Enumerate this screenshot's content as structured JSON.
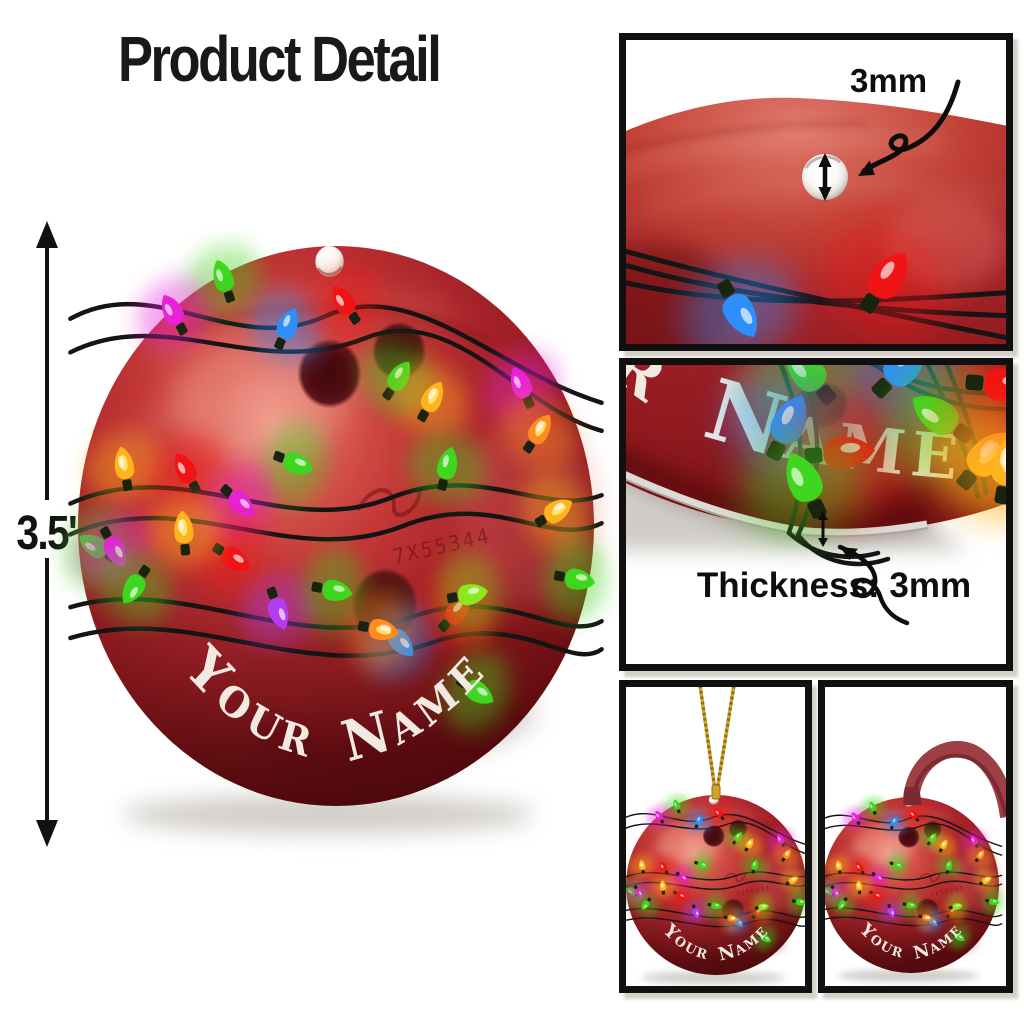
{
  "header": {
    "title": "Product Detail"
  },
  "measurement": {
    "label": "3.5'"
  },
  "ornament": {
    "name_text": "Your Name",
    "engraving": "7X55344",
    "ball_color": "#b32a2b",
    "wire_color": "#141414",
    "bulb_palette": {
      "green": "#3fd61f",
      "blue": "#2f8ffa",
      "red": "#f01414",
      "amber": "#ffb41e",
      "orange": "#ff8c1e",
      "magenta": "#e822d8",
      "purple": "#b43cf0",
      "lime": "#8ce81e"
    },
    "bulbs": [
      [
        -87,
        -176,
        -20,
        "green"
      ],
      [
        -38,
        -142,
        25,
        "blue"
      ],
      [
        7,
        -159,
        -35,
        "red"
      ],
      [
        48,
        -105,
        35,
        "green"
      ],
      [
        74,
        -90,
        30,
        "amber"
      ],
      [
        86,
        -42,
        15,
        "green"
      ],
      [
        144,
        -100,
        -25,
        "magenta"
      ],
      [
        157,
        -67,
        35,
        "orange"
      ],
      [
        -126,
        -152,
        -30,
        "magenta"
      ],
      [
        -164,
        -42,
        -10,
        "amber"
      ],
      [
        -116,
        -39,
        -30,
        "red"
      ],
      [
        -32,
        -45,
        110,
        "green"
      ],
      [
        -75,
        -17,
        130,
        "magenta"
      ],
      [
        -80,
        23,
        120,
        "red"
      ],
      [
        -118,
        4,
        -5,
        "amber"
      ],
      [
        -186,
        15,
        -60,
        "green"
      ],
      [
        -172,
        16,
        150,
        "magenta"
      ],
      [
        -156,
        43,
        215,
        "green"
      ],
      [
        -45,
        60,
        160,
        "purple"
      ],
      [
        -2,
        46,
        100,
        "green"
      ],
      [
        49,
        82,
        135,
        "blue"
      ],
      [
        93,
        62,
        45,
        "red"
      ],
      [
        109,
        118,
        120,
        "green"
      ],
      [
        34,
        74,
        100,
        "orange"
      ],
      [
        103,
        49,
        80,
        "lime"
      ],
      [
        170,
        -10,
        60,
        "amber"
      ],
      [
        186,
        38,
        100,
        "green"
      ]
    ]
  },
  "panels": {
    "hole_detail": {
      "label": "3mm",
      "bulbs": [
        [
          113,
          271,
          150,
          "blue",
          2.0
        ],
        [
          260,
          240,
          35,
          "red",
          2.2
        ]
      ]
    },
    "thickness": {
      "label": "Thickness: 3mm",
      "bulbs": [
        [
          182,
          8,
          -40,
          "green",
          2.2
        ],
        [
          162,
          60,
          25,
          "blue",
          2.2
        ],
        [
          216,
          88,
          85,
          "red",
          2.2
        ],
        [
          179,
          118,
          -25,
          "green",
          2.2
        ],
        [
          276,
          3,
          45,
          "blue",
          2.2
        ],
        [
          314,
          52,
          -55,
          "green",
          2.2
        ],
        [
          359,
          93,
          40,
          "amber",
          2.2
        ],
        [
          377,
          20,
          95,
          "red",
          2.2
        ],
        [
          382,
          102,
          10,
          "amber",
          2.2
        ]
      ]
    },
    "hanging_string": {
      "string_color": "#cfa22e",
      "string_shade": "#8f6d12"
    },
    "hanging_ribbon": {
      "ribbon_color": "#9e3e45",
      "ribbon_shade": "#7c2a32"
    }
  }
}
